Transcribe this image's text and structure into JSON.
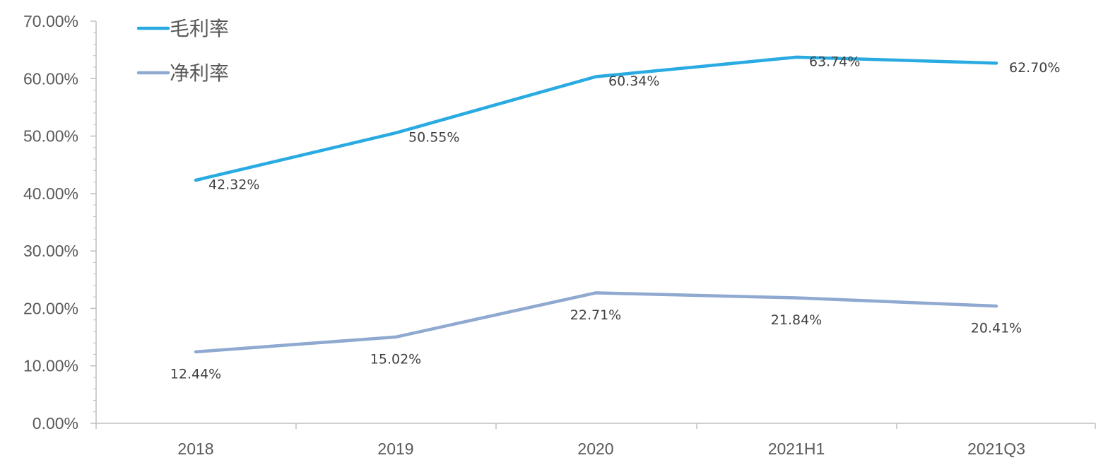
{
  "chart_data": {
    "type": "line",
    "categories": [
      "2018",
      "2019",
      "2020",
      "2021H1",
      "2021Q3"
    ],
    "series": [
      {
        "name": "毛利率",
        "values": [
          42.32,
          50.55,
          60.34,
          63.74,
          62.7
        ],
        "labels": [
          "42.32%",
          "50.55%",
          "60.34%",
          "63.74%",
          "62.70%"
        ],
        "color": "#29ABE2"
      },
      {
        "name": "净利率",
        "values": [
          12.44,
          15.02,
          22.71,
          21.84,
          20.41
        ],
        "labels": [
          "12.44%",
          "15.02%",
          "22.71%",
          "21.84%",
          "20.41%"
        ],
        "color": "#8FA9D0"
      }
    ],
    "y_ticks": [
      "0.00%",
      "10.00%",
      "20.00%",
      "30.00%",
      "40.00%",
      "50.00%",
      "60.00%",
      "70.00%"
    ],
    "ylim": [
      0,
      70
    ],
    "axis_color": "#BFBFBF",
    "grid": false,
    "legend_position": "top-left"
  }
}
